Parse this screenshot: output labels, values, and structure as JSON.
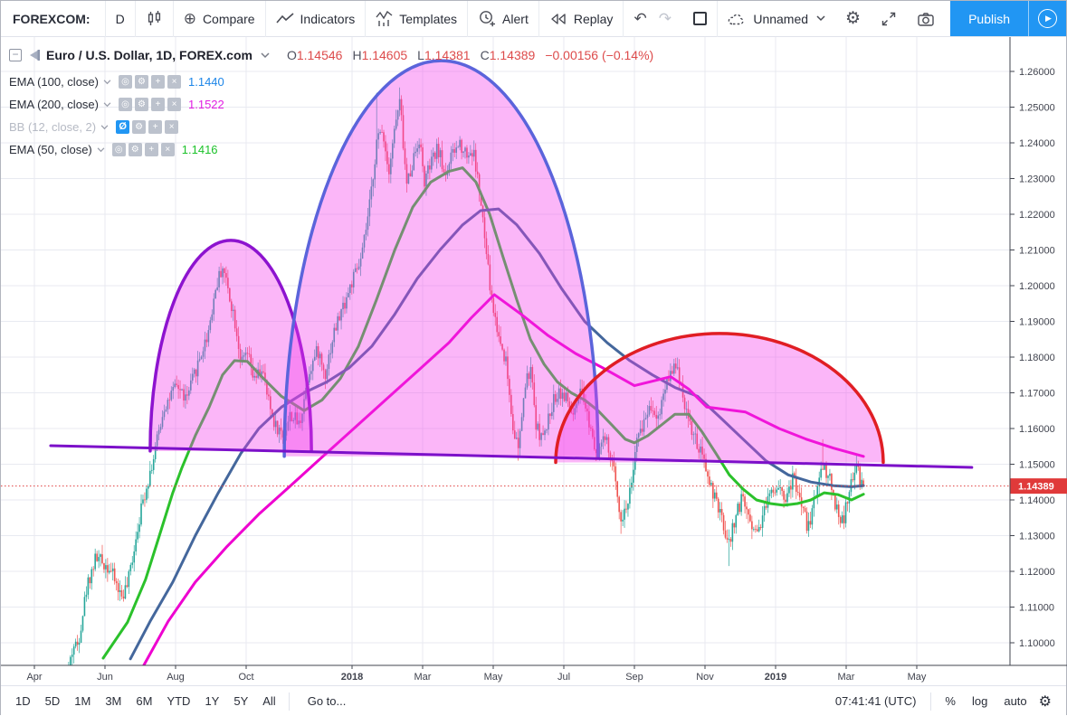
{
  "top_toolbar": {
    "symbol_search": "FOREXCOM:",
    "interval": "D",
    "compare_label": "Compare",
    "indicators_label": "Indicators",
    "templates_label": "Templates",
    "alert_label": "Alert",
    "replay_label": "Replay",
    "layout_name": "Unnamed",
    "publish_label": "Publish",
    "accent_color": "#2196f3"
  },
  "legend": {
    "title": "Euro / U.S. Dollar, 1D, FOREX.com",
    "ohlc": {
      "o_label": "O",
      "o": "1.14546",
      "h_label": "H",
      "h": "1.14605",
      "l_label": "L",
      "l": "1.14381",
      "c_label": "C",
      "c": "1.14389",
      "change": "−0.00156 (−0.14%)",
      "value_color": "#dd4b4b"
    },
    "indicators": [
      {
        "name": "EMA (100, close)",
        "value": "1.1440",
        "value_color": "#1d86e8",
        "hidden": false
      },
      {
        "name": "EMA (200, close)",
        "value": "1.1522",
        "value_color": "#e21ee2",
        "hidden": false
      },
      {
        "name": "BB (12, close, 2)",
        "value": "",
        "value_color": "",
        "hidden": true
      },
      {
        "name": "EMA (50, close)",
        "value": "1.1416",
        "value_color": "#1cc22a",
        "hidden": false
      }
    ]
  },
  "bottom_toolbar": {
    "ranges": [
      "1D",
      "5D",
      "1M",
      "3M",
      "6M",
      "YTD",
      "1Y",
      "5Y",
      "All"
    ],
    "goto_label": "Go to...",
    "clock": "07:41:41 (UTC)",
    "scale_buttons": [
      "%",
      "log",
      "auto"
    ]
  },
  "chart_data": {
    "type": "candlestick",
    "symbol": "Euro / U.S. Dollar",
    "interval": "1D",
    "exchange": "FOREX.com",
    "ohlc_current": {
      "open": 1.14546,
      "high": 1.14605,
      "low": 1.14381,
      "close": 1.14389,
      "change": -0.00156,
      "change_pct": -0.14
    },
    "y_axis": {
      "min": 1.1,
      "max": 1.26,
      "step": 0.01,
      "decimals": 5,
      "last_price": 1.14389,
      "last_price_color": "#e03a3a"
    },
    "x_axis": {
      "ticks": [
        {
          "m": 0,
          "label": "Apr"
        },
        {
          "m": 2,
          "label": "Jun"
        },
        {
          "m": 4,
          "label": "Aug"
        },
        {
          "m": 6,
          "label": "Oct"
        },
        {
          "m": 9,
          "label": "2018",
          "bold": true
        },
        {
          "m": 11,
          "label": "Mar"
        },
        {
          "m": 13,
          "label": "May"
        },
        {
          "m": 15,
          "label": "Jul"
        },
        {
          "m": 17,
          "label": "Sep"
        },
        {
          "m": 19,
          "label": "Nov"
        },
        {
          "m": 21,
          "label": "2019",
          "bold": true
        },
        {
          "m": 23,
          "label": "Mar"
        },
        {
          "m": 25,
          "label": "May"
        }
      ]
    },
    "candles": {
      "count": 450,
      "seed": 42,
      "noise": 0.0042,
      "wick": 0.0028,
      "up_color": "#26a69a",
      "down_color": "#ef5350",
      "anchors": [
        [
          0.97,
          1.093
        ],
        [
          1.1,
          1.099
        ],
        [
          1.23,
          1.0995
        ],
        [
          1.49,
          1.116
        ],
        [
          1.74,
          1.124
        ],
        [
          2.13,
          1.121
        ],
        [
          2.46,
          1.113
        ],
        [
          2.64,
          1.116
        ],
        [
          2.95,
          1.134
        ],
        [
          3.15,
          1.143
        ],
        [
          3.36,
          1.151
        ],
        [
          3.67,
          1.166
        ],
        [
          4.05,
          1.172
        ],
        [
          4.31,
          1.168
        ],
        [
          4.56,
          1.176
        ],
        [
          4.9,
          1.186
        ],
        [
          5.15,
          1.2
        ],
        [
          5.33,
          1.2055
        ],
        [
          5.51,
          1.198
        ],
        [
          5.67,
          1.191
        ],
        [
          5.87,
          1.178
        ],
        [
          6.03,
          1.181
        ],
        [
          6.23,
          1.173
        ],
        [
          6.44,
          1.177
        ],
        [
          6.62,
          1.168
        ],
        [
          6.82,
          1.161
        ],
        [
          7.05,
          1.158
        ],
        [
          7.26,
          1.164
        ],
        [
          7.51,
          1.161
        ],
        [
          7.77,
          1.176
        ],
        [
          8.03,
          1.182
        ],
        [
          8.23,
          1.175
        ],
        [
          8.49,
          1.187
        ],
        [
          8.74,
          1.194
        ],
        [
          9.0,
          1.201
        ],
        [
          9.26,
          1.207
        ],
        [
          9.51,
          1.223
        ],
        [
          9.69,
          1.24
        ],
        [
          9.87,
          1.244
        ],
        [
          10.03,
          1.232
        ],
        [
          10.23,
          1.2455
        ],
        [
          10.36,
          1.2515
        ],
        [
          10.54,
          1.228
        ],
        [
          10.72,
          1.235
        ],
        [
          10.9,
          1.2415
        ],
        [
          11.05,
          1.229
        ],
        [
          11.23,
          1.234
        ],
        [
          11.44,
          1.2385
        ],
        [
          11.62,
          1.231
        ],
        [
          11.82,
          1.236
        ],
        [
          12.05,
          1.24
        ],
        [
          12.26,
          1.237
        ],
        [
          12.44,
          1.2375
        ],
        [
          12.59,
          1.228
        ],
        [
          12.77,
          1.212
        ],
        [
          12.95,
          1.196
        ],
        [
          13.15,
          1.186
        ],
        [
          13.36,
          1.179
        ],
        [
          13.54,
          1.162
        ],
        [
          13.72,
          1.1535
        ],
        [
          13.87,
          1.17
        ],
        [
          14.05,
          1.177
        ],
        [
          14.23,
          1.16
        ],
        [
          14.44,
          1.157
        ],
        [
          14.64,
          1.166
        ],
        [
          14.85,
          1.171
        ],
        [
          15.08,
          1.168
        ],
        [
          15.28,
          1.163
        ],
        [
          15.49,
          1.17
        ],
        [
          15.72,
          1.162
        ],
        [
          15.92,
          1.154
        ],
        [
          16.18,
          1.157
        ],
        [
          16.44,
          1.147
        ],
        [
          16.64,
          1.134
        ],
        [
          16.85,
          1.141
        ],
        [
          17.05,
          1.155
        ],
        [
          17.26,
          1.162
        ],
        [
          17.46,
          1.167
        ],
        [
          17.67,
          1.163
        ],
        [
          17.87,
          1.172
        ],
        [
          18.08,
          1.1775
        ],
        [
          18.28,
          1.175
        ],
        [
          18.46,
          1.165
        ],
        [
          18.67,
          1.158
        ],
        [
          18.87,
          1.153
        ],
        [
          19.08,
          1.147
        ],
        [
          19.28,
          1.14
        ],
        [
          19.49,
          1.134
        ],
        [
          19.67,
          1.127
        ],
        [
          19.87,
          1.136
        ],
        [
          20.08,
          1.141
        ],
        [
          20.28,
          1.134
        ],
        [
          20.49,
          1.131
        ],
        [
          20.69,
          1.138
        ],
        [
          20.9,
          1.143
        ],
        [
          21.1,
          1.1445
        ],
        [
          21.31,
          1.14
        ],
        [
          21.51,
          1.1465
        ],
        [
          21.72,
          1.139
        ],
        [
          21.92,
          1.132
        ],
        [
          22.13,
          1.1415
        ],
        [
          22.33,
          1.15
        ],
        [
          22.51,
          1.1465
        ],
        [
          22.69,
          1.139
        ],
        [
          22.9,
          1.1335
        ],
        [
          23.1,
          1.142
        ],
        [
          23.28,
          1.151
        ],
        [
          23.41,
          1.1435
        ],
        [
          23.49,
          1.14389
        ]
      ],
      "spikes": [
        {
          "m": 9.69,
          "high": 1.254
        },
        {
          "m": 10.36,
          "high": 1.2555
        },
        {
          "m": 13.72,
          "low": 1.151
        },
        {
          "m": 16.64,
          "low": 1.1305
        },
        {
          "m": 19.67,
          "low": 1.1215
        },
        {
          "m": 22.33,
          "high": 1.157
        },
        {
          "m": 1.1,
          "low": 1.096
        }
      ]
    },
    "emas": [
      {
        "label": "EMA 50",
        "period": 50,
        "value": 1.1416,
        "color": "#2bc12b",
        "points": [
          [
            1.95,
            1.0957
          ],
          [
            2.64,
            1.1058
          ],
          [
            3.15,
            1.1177
          ],
          [
            3.54,
            1.13
          ],
          [
            3.92,
            1.142
          ],
          [
            4.18,
            1.149
          ],
          [
            4.56,
            1.158
          ],
          [
            4.95,
            1.166
          ],
          [
            5.33,
            1.175
          ],
          [
            5.67,
            1.179
          ],
          [
            6.03,
            1.1788
          ],
          [
            6.49,
            1.174
          ],
          [
            7.0,
            1.169
          ],
          [
            7.64,
            1.165
          ],
          [
            8.15,
            1.168
          ],
          [
            8.67,
            1.174
          ],
          [
            9.18,
            1.183
          ],
          [
            9.69,
            1.196
          ],
          [
            10.21,
            1.21
          ],
          [
            10.72,
            1.222
          ],
          [
            11.23,
            1.229
          ],
          [
            11.74,
            1.232
          ],
          [
            12.13,
            1.233
          ],
          [
            12.51,
            1.229
          ],
          [
            12.9,
            1.22
          ],
          [
            13.28,
            1.208
          ],
          [
            13.67,
            1.196
          ],
          [
            14.05,
            1.185
          ],
          [
            14.44,
            1.178
          ],
          [
            14.82,
            1.173
          ],
          [
            15.21,
            1.17
          ],
          [
            15.59,
            1.168
          ],
          [
            15.97,
            1.165
          ],
          [
            16.36,
            1.161
          ],
          [
            16.74,
            1.157
          ],
          [
            17.0,
            1.156
          ],
          [
            17.38,
            1.158
          ],
          [
            17.77,
            1.161
          ],
          [
            18.15,
            1.164
          ],
          [
            18.54,
            1.164
          ],
          [
            18.92,
            1.159
          ],
          [
            19.31,
            1.153
          ],
          [
            19.69,
            1.147
          ],
          [
            20.08,
            1.143
          ],
          [
            20.46,
            1.14
          ],
          [
            20.85,
            1.139
          ],
          [
            21.23,
            1.1385
          ],
          [
            21.62,
            1.139
          ],
          [
            22.0,
            1.14
          ],
          [
            22.38,
            1.142
          ],
          [
            22.77,
            1.1415
          ],
          [
            23.15,
            1.14
          ],
          [
            23.49,
            1.1416
          ]
        ]
      },
      {
        "label": "EMA 100",
        "period": 100,
        "value": 1.144,
        "color": "#44679c",
        "points": [
          [
            2.72,
            1.0955
          ],
          [
            3.28,
            1.106
          ],
          [
            3.92,
            1.117
          ],
          [
            4.56,
            1.13
          ],
          [
            5.21,
            1.142
          ],
          [
            5.85,
            1.153
          ],
          [
            6.36,
            1.16
          ],
          [
            7.0,
            1.166
          ],
          [
            7.64,
            1.17
          ],
          [
            8.28,
            1.173
          ],
          [
            8.92,
            1.177
          ],
          [
            9.56,
            1.183
          ],
          [
            10.21,
            1.192
          ],
          [
            10.85,
            1.202
          ],
          [
            11.49,
            1.21
          ],
          [
            12.13,
            1.217
          ],
          [
            12.64,
            1.221
          ],
          [
            13.15,
            1.2215
          ],
          [
            13.67,
            1.217
          ],
          [
            14.31,
            1.209
          ],
          [
            14.95,
            1.199
          ],
          [
            15.59,
            1.19
          ],
          [
            16.23,
            1.184
          ],
          [
            16.87,
            1.179
          ],
          [
            17.51,
            1.175
          ],
          [
            18.15,
            1.1715
          ],
          [
            18.79,
            1.169
          ],
          [
            19.44,
            1.163
          ],
          [
            20.08,
            1.157
          ],
          [
            20.72,
            1.151
          ],
          [
            21.36,
            1.147
          ],
          [
            22.0,
            1.145
          ],
          [
            22.64,
            1.144
          ],
          [
            23.15,
            1.1437
          ],
          [
            23.49,
            1.144
          ]
        ]
      },
      {
        "label": "EMA 200",
        "period": 200,
        "value": 1.1522,
        "color": "#ee00d0",
        "points": [
          [
            3.1,
            1.0937
          ],
          [
            3.79,
            1.106
          ],
          [
            4.56,
            1.117
          ],
          [
            5.46,
            1.127
          ],
          [
            6.36,
            1.136
          ],
          [
            7.26,
            1.144
          ],
          [
            8.15,
            1.152
          ],
          [
            9.05,
            1.16
          ],
          [
            9.95,
            1.168
          ],
          [
            10.85,
            1.176
          ],
          [
            11.74,
            1.184
          ],
          [
            12.38,
            1.191
          ],
          [
            13.03,
            1.1975
          ],
          [
            13.79,
            1.192
          ],
          [
            14.56,
            1.186
          ],
          [
            15.33,
            1.181
          ],
          [
            16.1,
            1.177
          ],
          [
            17.0,
            1.172
          ],
          [
            18.03,
            1.1745
          ],
          [
            18.54,
            1.171
          ],
          [
            19.05,
            1.166
          ],
          [
            20.15,
            1.1646
          ],
          [
            21.1,
            1.16
          ],
          [
            21.87,
            1.157
          ],
          [
            22.64,
            1.1545
          ],
          [
            23.49,
            1.1522
          ]
        ]
      }
    ],
    "drawings": {
      "fill_color": "rgba(243,58,235,0.37)",
      "neckline": {
        "from": [
          0.46,
          1.1552
        ],
        "to": [
          26.56,
          1.1491
        ],
        "color": "#7c10c9",
        "width": 3
      },
      "arcs": [
        {
          "name": "left-shoulder",
          "m1": 3.28,
          "m2": 7.85,
          "base": 1.1537,
          "peak": 1.2127,
          "color": "#8d13cf"
        },
        {
          "name": "head",
          "m1": 7.08,
          "m2": 15.97,
          "base": 1.1522,
          "peak": 1.263,
          "color": "#5b64db"
        },
        {
          "name": "right-shoulder",
          "m1": 14.77,
          "m2": 24.05,
          "base": 1.1505,
          "peak": 1.1866,
          "color": "#e01e24"
        }
      ],
      "last_price_line_color": "#e04040"
    },
    "grid_color": "#e8eaf1",
    "axis_color": "#42454f",
    "axis_text_color": "#40434e"
  }
}
